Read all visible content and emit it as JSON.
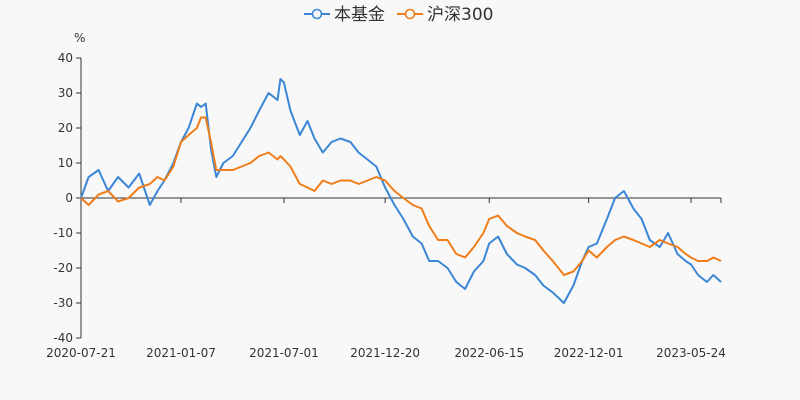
{
  "chart_data": {
    "type": "line",
    "ylabel": "%",
    "ylim": [
      -40,
      40
    ],
    "yticks": [
      40,
      30,
      20,
      10,
      0,
      -10,
      -20,
      -30,
      -40
    ],
    "x_range": [
      "2020-07-21",
      "2023-07-14"
    ],
    "xticks": [
      "2020-07-21",
      "2021-01-07",
      "2021-07-01",
      "2021-12-20",
      "2022-06-15",
      "2022-12-01",
      "2023-05-24"
    ],
    "legend": {
      "position": "top-center"
    },
    "series": [
      {
        "name": "本基金",
        "color": "#3b86d6",
        "points": [
          [
            "2020-07-21",
            0
          ],
          [
            "2020-08-03",
            6
          ],
          [
            "2020-08-20",
            8
          ],
          [
            "2020-09-05",
            2
          ],
          [
            "2020-09-22",
            6
          ],
          [
            "2020-10-10",
            3
          ],
          [
            "2020-10-28",
            7
          ],
          [
            "2020-11-15",
            -2
          ],
          [
            "2020-11-28",
            2
          ],
          [
            "2020-12-10",
            5
          ],
          [
            "2020-12-25",
            10
          ],
          [
            "2021-01-07",
            16
          ],
          [
            "2021-01-20",
            20
          ],
          [
            "2021-02-03",
            27
          ],
          [
            "2021-02-10",
            26
          ],
          [
            "2021-02-18",
            27
          ],
          [
            "2021-02-27",
            14
          ],
          [
            "2021-03-08",
            6
          ],
          [
            "2021-03-20",
            10
          ],
          [
            "2021-04-05",
            12
          ],
          [
            "2021-04-20",
            16
          ],
          [
            "2021-05-05",
            20
          ],
          [
            "2021-05-20",
            25
          ],
          [
            "2021-06-05",
            30
          ],
          [
            "2021-06-20",
            28
          ],
          [
            "2021-06-25",
            34
          ],
          [
            "2021-07-01",
            33
          ],
          [
            "2021-07-12",
            25
          ],
          [
            "2021-07-28",
            18
          ],
          [
            "2021-08-10",
            22
          ],
          [
            "2021-08-22",
            17
          ],
          [
            "2021-09-05",
            13
          ],
          [
            "2021-09-20",
            16
          ],
          [
            "2021-10-05",
            17
          ],
          [
            "2021-10-22",
            16
          ],
          [
            "2021-11-05",
            13
          ],
          [
            "2021-11-20",
            11
          ],
          [
            "2021-12-05",
            9
          ],
          [
            "2021-12-20",
            3
          ],
          [
            "2022-01-05",
            -2
          ],
          [
            "2022-01-20",
            -6
          ],
          [
            "2022-02-05",
            -11
          ],
          [
            "2022-02-20",
            -13
          ],
          [
            "2022-03-05",
            -18
          ],
          [
            "2022-03-20",
            -18
          ],
          [
            "2022-04-05",
            -20
          ],
          [
            "2022-04-20",
            -24
          ],
          [
            "2022-05-05",
            -26
          ],
          [
            "2022-05-20",
            -21
          ],
          [
            "2022-06-05",
            -18
          ],
          [
            "2022-06-15",
            -13
          ],
          [
            "2022-06-30",
            -11
          ],
          [
            "2022-07-15",
            -16
          ],
          [
            "2022-08-01",
            -19
          ],
          [
            "2022-08-15",
            -20
          ],
          [
            "2022-09-01",
            -22
          ],
          [
            "2022-09-15",
            -25
          ],
          [
            "2022-10-01",
            -27
          ],
          [
            "2022-10-20",
            -30
          ],
          [
            "2022-11-05",
            -25
          ],
          [
            "2022-11-20",
            -18
          ],
          [
            "2022-12-01",
            -14
          ],
          [
            "2022-12-15",
            -13
          ],
          [
            "2023-01-01",
            -6
          ],
          [
            "2023-01-15",
            0
          ],
          [
            "2023-01-30",
            2
          ],
          [
            "2023-02-15",
            -3
          ],
          [
            "2023-03-01",
            -6
          ],
          [
            "2023-03-15",
            -12
          ],
          [
            "2023-04-01",
            -14
          ],
          [
            "2023-04-15",
            -10
          ],
          [
            "2023-05-01",
            -16
          ],
          [
            "2023-05-15",
            -18
          ],
          [
            "2023-05-24",
            -19
          ],
          [
            "2023-06-05",
            -22
          ],
          [
            "2023-06-20",
            -24
          ],
          [
            "2023-07-01",
            -22
          ],
          [
            "2023-07-14",
            -24
          ]
        ]
      },
      {
        "name": "沪深300",
        "color": "#f07d1a",
        "points": [
          [
            "2020-07-21",
            0
          ],
          [
            "2020-08-03",
            -2
          ],
          [
            "2020-08-20",
            1
          ],
          [
            "2020-09-05",
            2
          ],
          [
            "2020-09-22",
            -1
          ],
          [
            "2020-10-10",
            0
          ],
          [
            "2020-10-28",
            3
          ],
          [
            "2020-11-15",
            4
          ],
          [
            "2020-11-28",
            6
          ],
          [
            "2020-12-10",
            5
          ],
          [
            "2020-12-25",
            9
          ],
          [
            "2021-01-07",
            16
          ],
          [
            "2021-01-20",
            18
          ],
          [
            "2021-02-03",
            20
          ],
          [
            "2021-02-10",
            23
          ],
          [
            "2021-02-18",
            23
          ],
          [
            "2021-02-27",
            16
          ],
          [
            "2021-03-08",
            8
          ],
          [
            "2021-03-20",
            8
          ],
          [
            "2021-04-05",
            8
          ],
          [
            "2021-04-20",
            9
          ],
          [
            "2021-05-05",
            10
          ],
          [
            "2021-05-20",
            12
          ],
          [
            "2021-06-05",
            13
          ],
          [
            "2021-06-20",
            11
          ],
          [
            "2021-06-25",
            12
          ],
          [
            "2021-07-01",
            11
          ],
          [
            "2021-07-12",
            9
          ],
          [
            "2021-07-28",
            4
          ],
          [
            "2021-08-10",
            3
          ],
          [
            "2021-08-22",
            2
          ],
          [
            "2021-09-05",
            5
          ],
          [
            "2021-09-20",
            4
          ],
          [
            "2021-10-05",
            5
          ],
          [
            "2021-10-22",
            5
          ],
          [
            "2021-11-05",
            4
          ],
          [
            "2021-11-20",
            5
          ],
          [
            "2021-12-05",
            6
          ],
          [
            "2021-12-20",
            5
          ],
          [
            "2022-01-05",
            2
          ],
          [
            "2022-01-20",
            0
          ],
          [
            "2022-02-05",
            -2
          ],
          [
            "2022-02-20",
            -3
          ],
          [
            "2022-03-05",
            -8
          ],
          [
            "2022-03-20",
            -12
          ],
          [
            "2022-04-05",
            -12
          ],
          [
            "2022-04-20",
            -16
          ],
          [
            "2022-05-05",
            -17
          ],
          [
            "2022-05-20",
            -14
          ],
          [
            "2022-06-05",
            -10
          ],
          [
            "2022-06-15",
            -6
          ],
          [
            "2022-06-30",
            -5
          ],
          [
            "2022-07-15",
            -8
          ],
          [
            "2022-08-01",
            -10
          ],
          [
            "2022-08-15",
            -11
          ],
          [
            "2022-09-01",
            -12
          ],
          [
            "2022-09-15",
            -15
          ],
          [
            "2022-10-01",
            -18
          ],
          [
            "2022-10-20",
            -22
          ],
          [
            "2022-11-05",
            -21
          ],
          [
            "2022-11-20",
            -18
          ],
          [
            "2022-12-01",
            -15
          ],
          [
            "2022-12-15",
            -17
          ],
          [
            "2023-01-01",
            -14
          ],
          [
            "2023-01-15",
            -12
          ],
          [
            "2023-01-30",
            -11
          ],
          [
            "2023-02-15",
            -12
          ],
          [
            "2023-03-01",
            -13
          ],
          [
            "2023-03-15",
            -14
          ],
          [
            "2023-04-01",
            -12
          ],
          [
            "2023-04-15",
            -13
          ],
          [
            "2023-05-01",
            -14
          ],
          [
            "2023-05-15",
            -16
          ],
          [
            "2023-05-24",
            -17
          ],
          [
            "2023-06-05",
            -18
          ],
          [
            "2023-06-20",
            -18
          ],
          [
            "2023-07-01",
            -17
          ],
          [
            "2023-07-14",
            -18
          ]
        ]
      }
    ]
  }
}
